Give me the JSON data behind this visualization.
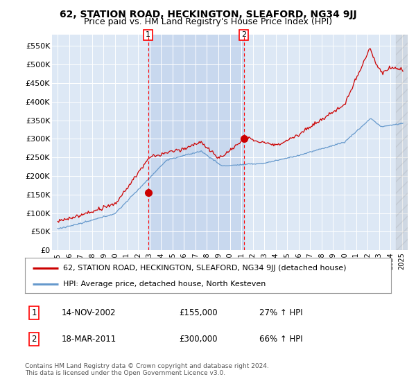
{
  "title": "62, STATION ROAD, HECKINGTON, SLEAFORD, NG34 9JJ",
  "subtitle": "Price paid vs. HM Land Registry's House Price Index (HPI)",
  "hpi_label": "HPI: Average price, detached house, North Kesteven",
  "property_label": "62, STATION ROAD, HECKINGTON, SLEAFORD, NG34 9JJ (detached house)",
  "footer": "Contains HM Land Registry data © Crown copyright and database right 2024.\nThis data is licensed under the Open Government Licence v3.0.",
  "transaction1": {
    "label": "1",
    "date": "14-NOV-2002",
    "price": "£155,000",
    "hpi": "27% ↑ HPI"
  },
  "transaction2": {
    "label": "2",
    "date": "18-MAR-2011",
    "price": "£300,000",
    "hpi": "66% ↑ HPI"
  },
  "vline1_x": 2002.87,
  "vline2_x": 2011.21,
  "point1_x": 2002.87,
  "point1_y": 155000,
  "point2_x": 2011.21,
  "point2_y": 300000,
  "xlim": [
    1994.5,
    2025.5
  ],
  "ylim": [
    0,
    580000
  ],
  "yticks": [
    0,
    50000,
    100000,
    150000,
    200000,
    250000,
    300000,
    350000,
    400000,
    450000,
    500000,
    550000
  ],
  "ytick_labels": [
    "£0",
    "£50K",
    "£100K",
    "£150K",
    "£200K",
    "£250K",
    "£300K",
    "£350K",
    "£400K",
    "£450K",
    "£500K",
    "£550K"
  ],
  "xticks": [
    1995,
    1996,
    1997,
    1998,
    1999,
    2000,
    2001,
    2002,
    2003,
    2004,
    2005,
    2006,
    2007,
    2008,
    2009,
    2010,
    2011,
    2012,
    2013,
    2014,
    2015,
    2016,
    2017,
    2018,
    2019,
    2020,
    2021,
    2022,
    2023,
    2024,
    2025
  ],
  "property_color": "#cc0000",
  "hpi_color": "#6699cc",
  "bg_color": "#dde8f5",
  "shade_color": "#c8d8ee",
  "plot_bg": "#ffffff",
  "title_fontsize": 10,
  "subtitle_fontsize": 9,
  "future_cutoff": 2024.5
}
